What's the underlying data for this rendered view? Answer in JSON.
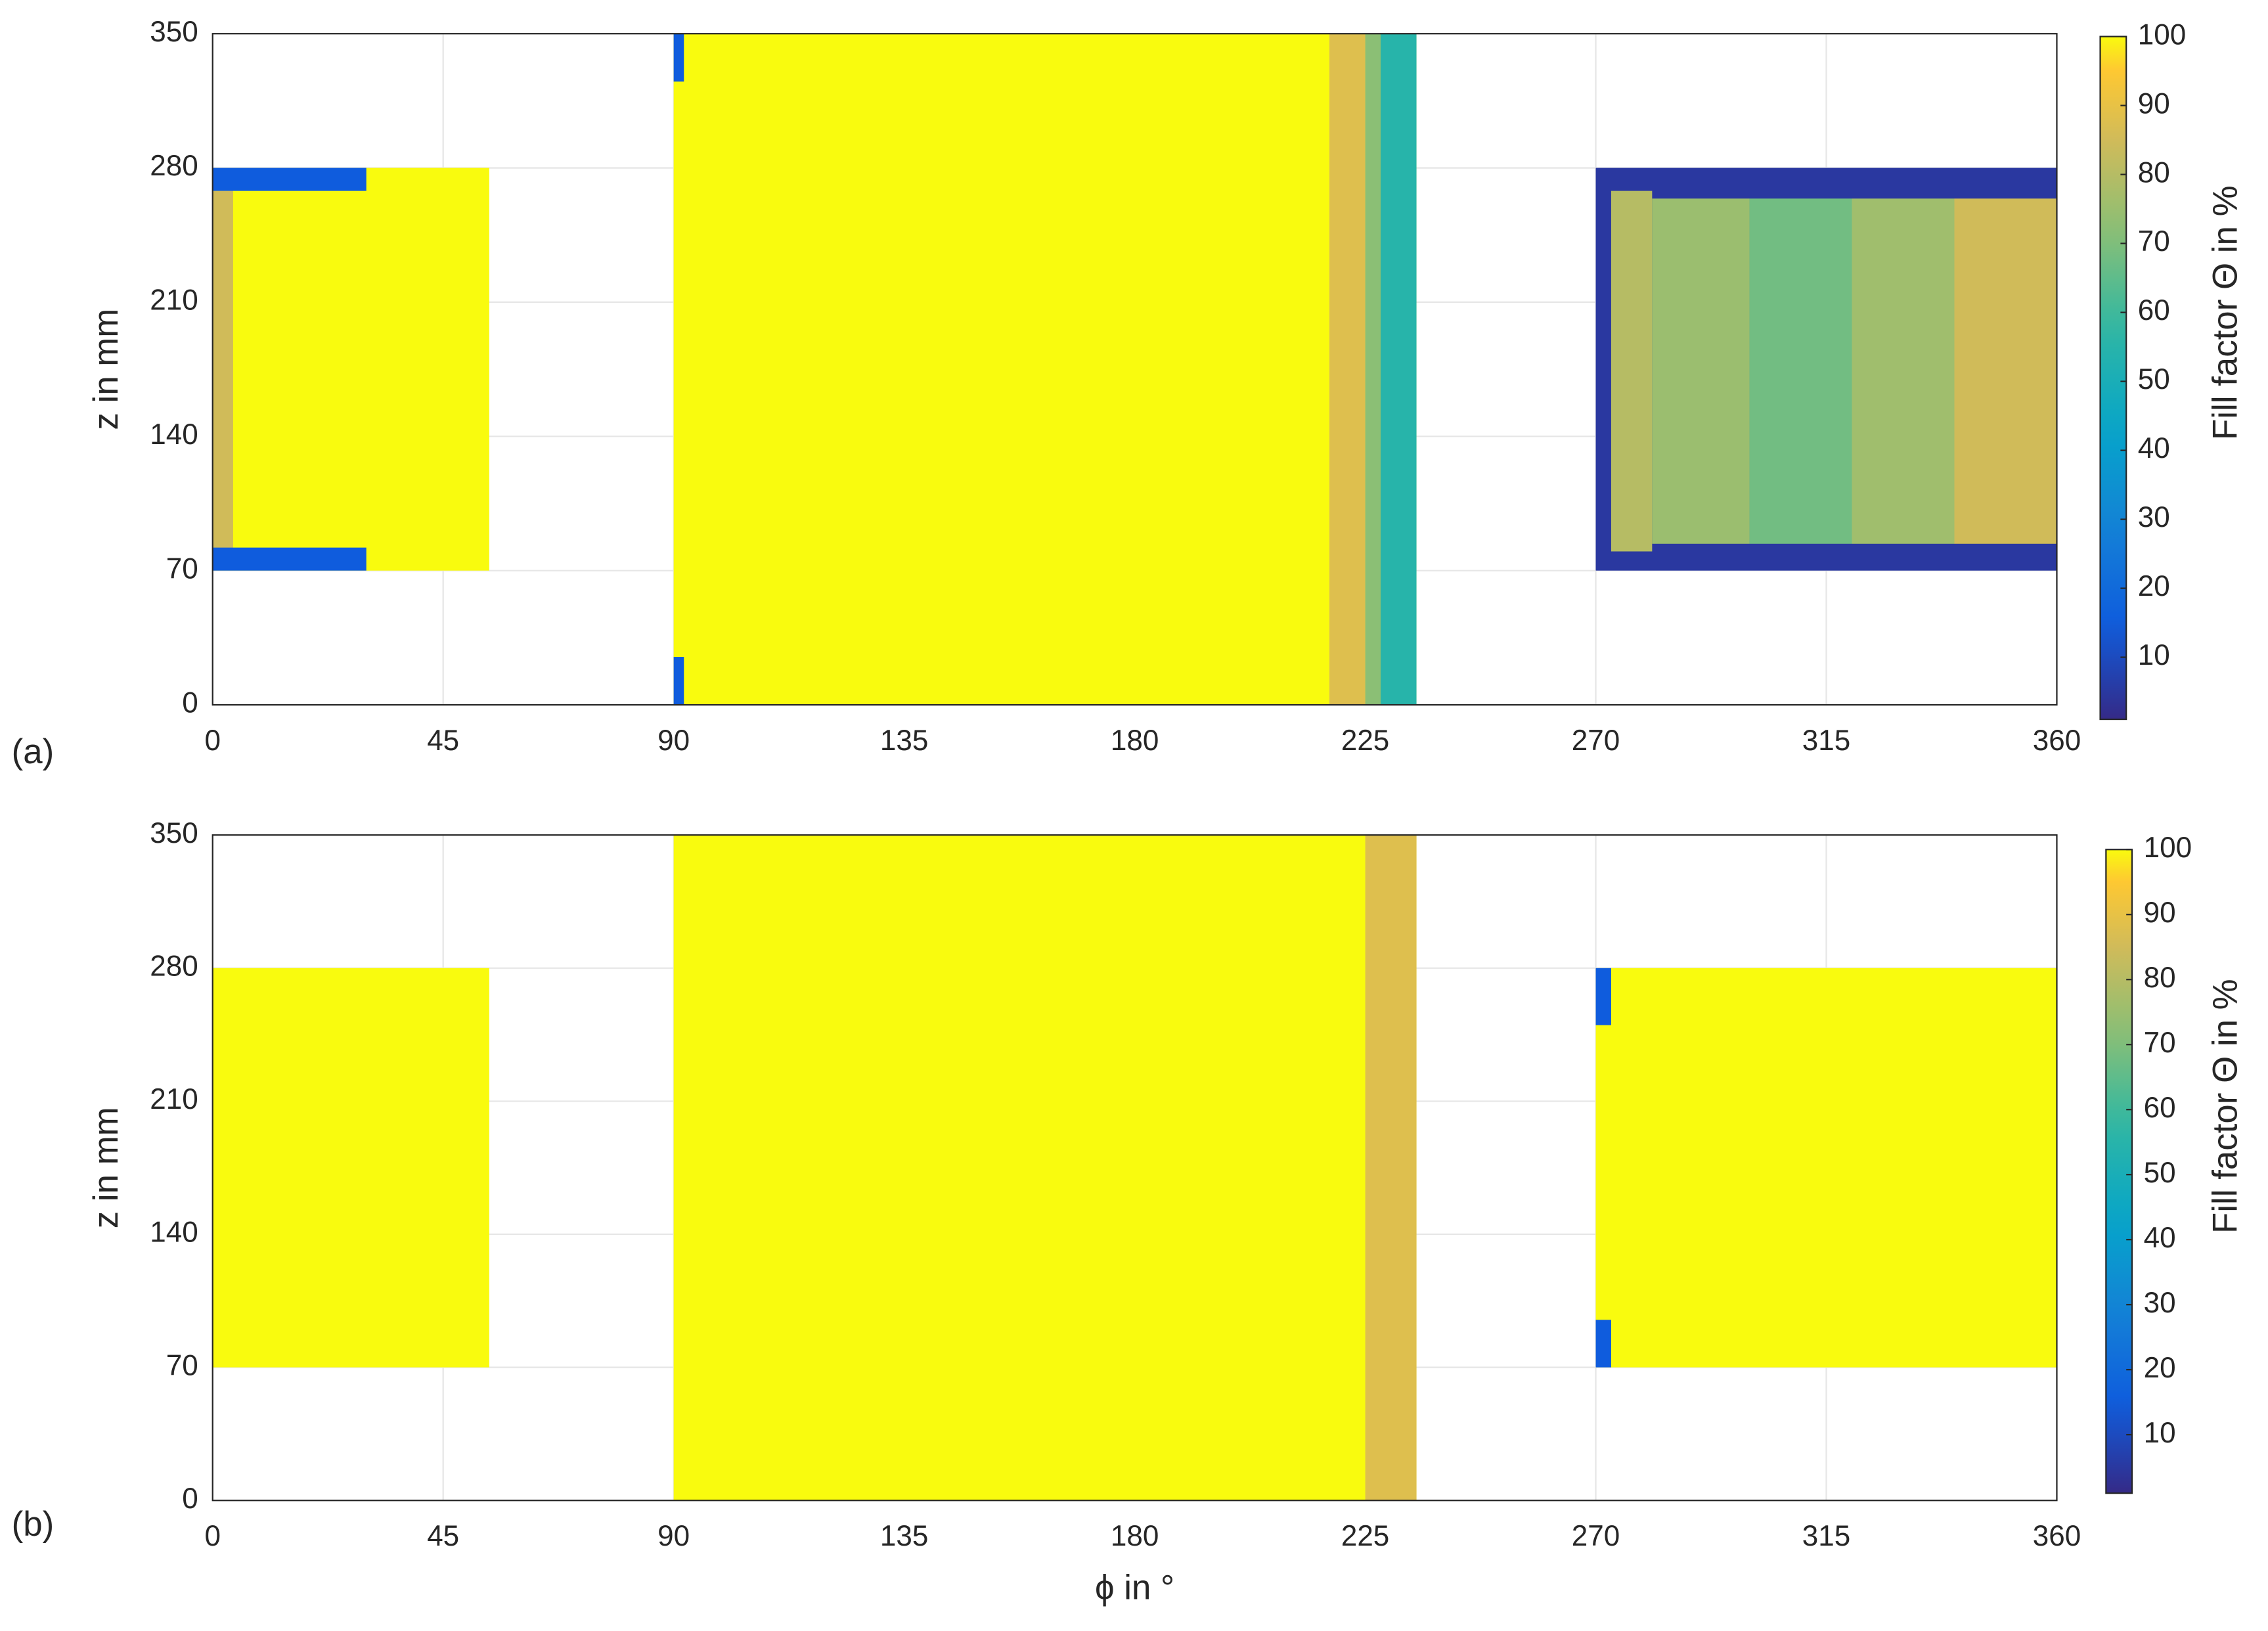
{
  "chart_data": [
    {
      "type": "heatmap",
      "label": "(a)",
      "ylabel": "z in mm",
      "colorbar_label": "Fill factor Θ in %",
      "colormap": "parula",
      "grid": true,
      "xlim": [
        0,
        360
      ],
      "xticks": [
        0,
        45,
        90,
        135,
        180,
        225,
        270,
        315,
        360
      ],
      "ylim": [
        0,
        350
      ],
      "yticks": [
        0,
        70,
        140,
        210,
        280,
        350
      ],
      "clim": [
        1,
        100
      ],
      "cticks": [
        10,
        20,
        30,
        40,
        50,
        60,
        70,
        80,
        90,
        100
      ],
      "cells": [
        {
          "phi": [
            0,
            54
          ],
          "z": [
            70,
            280
          ],
          "value": 100
        },
        {
          "phi": [
            0,
            4
          ],
          "z": [
            80,
            268
          ],
          "value": 85
        },
        {
          "phi": [
            0,
            30
          ],
          "z": [
            268,
            280
          ],
          "value": 15
        },
        {
          "phi": [
            0,
            30
          ],
          "z": [
            70,
            82
          ],
          "value": 15
        },
        {
          "phi": [
            90,
            235
          ],
          "z": [
            0,
            350
          ],
          "value": 100
        },
        {
          "phi": [
            90,
            92
          ],
          "z": [
            325,
            350
          ],
          "value": 15
        },
        {
          "phi": [
            90,
            92
          ],
          "z": [
            0,
            25
          ],
          "value": 15
        },
        {
          "phi": [
            218,
            225
          ],
          "z": [
            0,
            350
          ],
          "value": 88
        },
        {
          "phi": [
            225,
            228
          ],
          "z": [
            0,
            350
          ],
          "value": 72
        },
        {
          "phi": [
            228,
            235
          ],
          "z": [
            0,
            350
          ],
          "value": 55
        },
        {
          "phi": [
            270,
            360
          ],
          "z": [
            70,
            280
          ],
          "value": 5
        },
        {
          "phi": [
            273,
            281
          ],
          "z": [
            80,
            268
          ],
          "value": 80
        },
        {
          "phi": [
            281,
            300
          ],
          "z": [
            84,
            264
          ],
          "value": 75
        },
        {
          "phi": [
            300,
            320
          ],
          "z": [
            84,
            264
          ],
          "value": 68
        },
        {
          "phi": [
            320,
            340
          ],
          "z": [
            84,
            264
          ],
          "value": 76
        },
        {
          "phi": [
            340,
            360
          ],
          "z": [
            84,
            264
          ],
          "value": 85
        }
      ]
    },
    {
      "type": "heatmap",
      "label": "(b)",
      "ylabel": "z in mm",
      "xlabel": "ϕ in °",
      "colorbar_label": "Fill factor Θ in %",
      "colormap": "parula",
      "grid": true,
      "xlim": [
        0,
        360
      ],
      "xticks": [
        0,
        45,
        90,
        135,
        180,
        225,
        270,
        315,
        360
      ],
      "ylim": [
        0,
        350
      ],
      "yticks": [
        0,
        70,
        140,
        210,
        280,
        350
      ],
      "clim": [
        1,
        100
      ],
      "cticks": [
        10,
        20,
        30,
        40,
        50,
        60,
        70,
        80,
        90,
        100
      ],
      "cells": [
        {
          "phi": [
            0,
            54
          ],
          "z": [
            70,
            280
          ],
          "value": 100
        },
        {
          "phi": [
            90,
            235
          ],
          "z": [
            0,
            350
          ],
          "value": 100
        },
        {
          "phi": [
            225,
            235
          ],
          "z": [
            0,
            350
          ],
          "value": 88
        },
        {
          "phi": [
            270,
            360
          ],
          "z": [
            70,
            280
          ],
          "value": 100
        },
        {
          "phi": [
            270,
            273
          ],
          "z": [
            250,
            280
          ],
          "value": 15
        },
        {
          "phi": [
            270,
            273
          ],
          "z": [
            70,
            95
          ],
          "value": 15
        }
      ]
    }
  ]
}
